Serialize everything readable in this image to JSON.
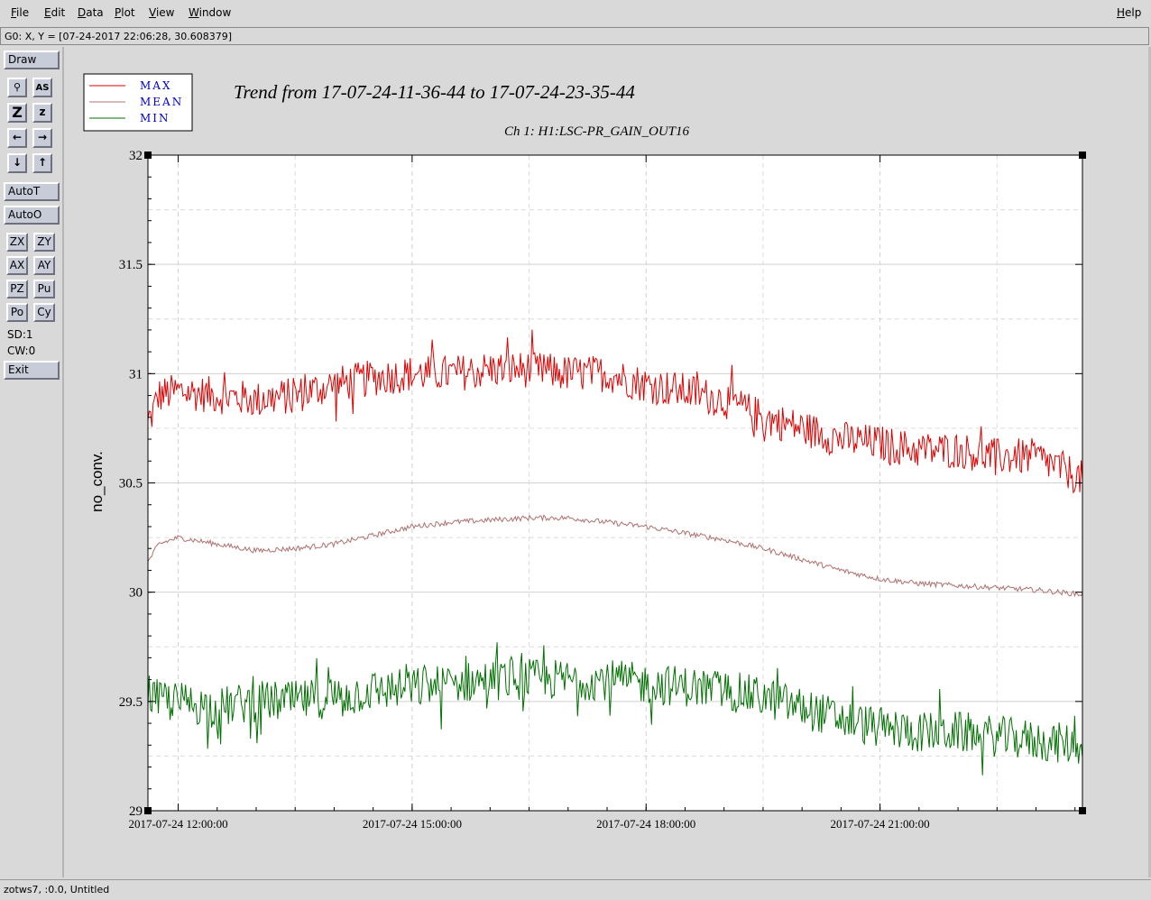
{
  "menubar": {
    "items": [
      {
        "label": "File",
        "ul": "F",
        "rest": "ile"
      },
      {
        "label": "Edit",
        "ul": "E",
        "rest": "dit"
      },
      {
        "label": "Data",
        "ul": "D",
        "rest": "ata"
      },
      {
        "label": "Plot",
        "ul": "P",
        "rest": "lot"
      },
      {
        "label": "View",
        "ul": "V",
        "rest": "iew"
      },
      {
        "label": "Window",
        "ul": "W",
        "rest": "indow"
      }
    ],
    "help": {
      "label": "Help",
      "ul": "H",
      "rest": "elp"
    }
  },
  "coords": {
    "text": "G0: X, Y = [07-24-2017 22:06:28, 30.608379]"
  },
  "toolbar": {
    "draw": "Draw",
    "icons": [
      {
        "name": "zoom-magnifier-icon",
        "glyph": "🔍"
      },
      {
        "name": "autoscale-icon",
        "glyph": "AS"
      },
      {
        "name": "zoom-in-icon",
        "glyph": "Z"
      },
      {
        "name": "zoom-out-icon",
        "glyph": "z"
      },
      {
        "name": "pan-left-icon",
        "glyph": "←"
      },
      {
        "name": "pan-right-icon",
        "glyph": "→"
      },
      {
        "name": "pan-down-icon",
        "glyph": "↓"
      },
      {
        "name": "pan-up-icon",
        "glyph": "↑"
      }
    ],
    "autot": "AutoT",
    "autoo": "AutoO",
    "small": [
      "ZX",
      "ZY",
      "AX",
      "AY",
      "PZ",
      "Pu",
      "Po",
      "Cy"
    ],
    "sd": "SD:1",
    "cw": "CW:0",
    "exit": "Exit"
  },
  "chart_data": {
    "type": "line",
    "title": "Trend from 17-07-24-11-36-44 to 17-07-24-23-35-44",
    "subtitle": "Ch 1: H1:LSC-PR_GAIN_OUT16",
    "ylabel": "no_conv.",
    "xlabel": "",
    "xlim": [
      "2017-07-24 11:36:44",
      "2017-07-24 23:35:44"
    ],
    "ylim": [
      29,
      32
    ],
    "yticks": [
      29,
      29.5,
      30,
      30.5,
      31,
      31.5,
      32
    ],
    "ytick_labels": [
      "29",
      "29.5",
      "30",
      "30.5",
      "31",
      "31.5",
      "32"
    ],
    "xtick_labels": [
      "2017-07-24 12:00:00",
      "2017-07-24 15:00:00",
      "2017-07-24 18:00:00",
      "2017-07-24 21:00:00"
    ],
    "xtick_times": [
      "2017-07-24 12:00:00",
      "2017-07-24 15:00:00",
      "2017-07-24 18:00:00",
      "2017-07-24 21:00:00"
    ],
    "grid": true,
    "legend_position": "top-left",
    "series": [
      {
        "name": "MAX",
        "color": "#e00000",
        "points": [
          [
            "11:36",
            30.75
          ],
          [
            "11:45",
            30.9
          ],
          [
            "12:00",
            30.92
          ],
          [
            "12:30",
            30.9
          ],
          [
            "13:00",
            30.88
          ],
          [
            "13:30",
            30.9
          ],
          [
            "14:00",
            30.95
          ],
          [
            "14:30",
            30.98
          ],
          [
            "15:00",
            31.0
          ],
          [
            "15:30",
            31.0
          ],
          [
            "16:00",
            31.02
          ],
          [
            "16:30",
            31.02
          ],
          [
            "17:00",
            31.0
          ],
          [
            "17:30",
            31.0
          ],
          [
            "18:00",
            30.95
          ],
          [
            "18:30",
            30.92
          ],
          [
            "19:00",
            30.88
          ],
          [
            "19:30",
            30.8
          ],
          [
            "20:00",
            30.75
          ],
          [
            "20:30",
            30.7
          ],
          [
            "21:00",
            30.68
          ],
          [
            "21:30",
            30.65
          ],
          [
            "22:00",
            30.65
          ],
          [
            "22:30",
            30.62
          ],
          [
            "23:00",
            30.62
          ],
          [
            "23:35",
            30.52
          ]
        ]
      },
      {
        "name": "MEAN",
        "color": "#b07070",
        "points": [
          [
            "11:36",
            30.13
          ],
          [
            "11:45",
            30.22
          ],
          [
            "12:00",
            30.25
          ],
          [
            "12:30",
            30.22
          ],
          [
            "13:00",
            30.19
          ],
          [
            "13:30",
            30.2
          ],
          [
            "14:00",
            30.22
          ],
          [
            "14:30",
            30.26
          ],
          [
            "15:00",
            30.3
          ],
          [
            "15:30",
            30.32
          ],
          [
            "16:00",
            30.33
          ],
          [
            "16:30",
            30.34
          ],
          [
            "17:00",
            30.34
          ],
          [
            "17:30",
            30.32
          ],
          [
            "18:00",
            30.3
          ],
          [
            "18:30",
            30.27
          ],
          [
            "19:00",
            30.24
          ],
          [
            "19:30",
            30.2
          ],
          [
            "20:00",
            30.15
          ],
          [
            "20:30",
            30.1
          ],
          [
            "21:00",
            30.06
          ],
          [
            "21:30",
            30.04
          ],
          [
            "22:00",
            30.03
          ],
          [
            "22:30",
            30.02
          ],
          [
            "23:00",
            30.01
          ],
          [
            "23:35",
            29.99
          ]
        ]
      },
      {
        "name": "MIN",
        "color": "#007000",
        "points": [
          [
            "11:36",
            29.55
          ],
          [
            "11:45",
            29.5
          ],
          [
            "12:00",
            29.5
          ],
          [
            "12:30",
            29.47
          ],
          [
            "13:00",
            29.5
          ],
          [
            "13:30",
            29.5
          ],
          [
            "14:00",
            29.52
          ],
          [
            "14:30",
            29.55
          ],
          [
            "15:00",
            29.56
          ],
          [
            "15:30",
            29.58
          ],
          [
            "16:00",
            29.6
          ],
          [
            "16:30",
            29.6
          ],
          [
            "17:00",
            29.6
          ],
          [
            "17:30",
            29.6
          ],
          [
            "18:00",
            29.58
          ],
          [
            "18:30",
            29.57
          ],
          [
            "19:00",
            29.55
          ],
          [
            "19:30",
            29.52
          ],
          [
            "20:00",
            29.47
          ],
          [
            "20:30",
            29.42
          ],
          [
            "21:00",
            29.38
          ],
          [
            "21:30",
            29.36
          ],
          [
            "22:00",
            29.36
          ],
          [
            "22:30",
            29.34
          ],
          [
            "23:00",
            29.32
          ],
          [
            "23:35",
            29.3
          ]
        ]
      }
    ]
  },
  "status": {
    "text": "zotws7, :0.0, Untitled"
  }
}
